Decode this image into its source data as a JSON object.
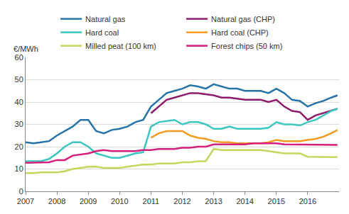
{
  "chart_data": {
    "type": "line",
    "ylabel": "€/MWh",
    "x": [
      2007.0,
      2007.25,
      2007.5,
      2007.75,
      2008.0,
      2008.25,
      2008.5,
      2008.75,
      2009.0,
      2009.25,
      2009.5,
      2009.75,
      2010.0,
      2010.25,
      2010.5,
      2010.75,
      2011.0,
      2011.25,
      2011.5,
      2011.75,
      2012.0,
      2012.25,
      2012.5,
      2012.75,
      2013.0,
      2013.25,
      2013.5,
      2013.75,
      2014.0,
      2014.25,
      2014.5,
      2014.75,
      2015.0,
      2015.25,
      2015.5,
      2015.75,
      2016.0,
      2016.25,
      2016.5,
      2016.75,
      2016.95
    ],
    "series": [
      {
        "name": "Natural gas",
        "color": "#2773a8",
        "values": [
          22,
          21.5,
          22,
          22.5,
          25,
          27,
          29,
          32,
          32,
          27,
          26,
          27.5,
          28,
          29,
          31,
          32,
          38,
          41,
          44,
          45,
          46,
          47.5,
          47,
          46,
          48,
          47,
          46,
          46,
          45,
          45,
          45,
          44,
          46,
          44,
          41,
          40.5,
          38,
          39.5,
          40.5,
          42,
          43
        ]
      },
      {
        "name": "Natural gas (CHP)",
        "color": "#8e1c6a",
        "values": [
          null,
          null,
          null,
          null,
          null,
          null,
          null,
          null,
          null,
          null,
          null,
          null,
          null,
          null,
          null,
          null,
          35,
          38,
          41,
          42,
          43,
          44,
          44,
          43.5,
          43,
          42,
          42,
          41.5,
          41,
          41,
          41,
          40,
          41,
          38,
          36,
          35.5,
          32,
          34,
          35,
          36,
          37
        ]
      },
      {
        "name": "Hard coal",
        "color": "#3cc6c0",
        "values": [
          13.5,
          13.5,
          13.5,
          14.5,
          17,
          20,
          22,
          22,
          20,
          17,
          16,
          15,
          15,
          16,
          17,
          17.5,
          29,
          31,
          31.5,
          32,
          30,
          31,
          31,
          30,
          28,
          28,
          29,
          28,
          28,
          28,
          28,
          28.5,
          31,
          30,
          30,
          29.5,
          31,
          32,
          34,
          36,
          37
        ]
      },
      {
        "name": "Hard coal (CHP)",
        "color": "#f39b1e",
        "values": [
          null,
          null,
          null,
          null,
          null,
          null,
          null,
          null,
          null,
          null,
          null,
          null,
          null,
          null,
          null,
          null,
          24,
          26,
          27,
          27,
          27,
          25,
          24,
          23.5,
          22.5,
          22,
          22,
          21.5,
          21.5,
          21.5,
          21.5,
          22,
          23,
          22.5,
          22.5,
          22.5,
          23,
          23.5,
          24.5,
          26,
          27.5
        ]
      },
      {
        "name": "Milled peat (100 km)",
        "color": "#c1d95a",
        "values": [
          8.2,
          8.2,
          8.5,
          8.5,
          8.5,
          9,
          10,
          10.5,
          11,
          11,
          10.5,
          10.5,
          10.5,
          11,
          11.5,
          12,
          12,
          12.5,
          12.5,
          12.5,
          13,
          13,
          13.5,
          13.5,
          19,
          18.5,
          18.5,
          18.5,
          18.5,
          18.5,
          18.5,
          18,
          17.5,
          17,
          17,
          17,
          15.5,
          15.5,
          15.5,
          15.3,
          15.3
        ]
      },
      {
        "name": "Forest chips (50 km)",
        "color": "#d61f7a",
        "values": [
          12.8,
          12.8,
          12.8,
          13,
          14,
          14,
          16,
          16.5,
          17,
          18,
          18.5,
          18,
          18,
          18,
          18,
          18.5,
          18.5,
          19,
          19,
          19,
          19.5,
          19.5,
          20,
          20,
          21,
          21,
          21,
          21,
          21,
          21.5,
          21.5,
          21.5,
          21.5,
          21,
          21,
          21,
          21,
          21,
          20.8,
          20.8,
          20.8
        ]
      }
    ],
    "xlim": [
      2007,
      2017
    ],
    "xticks": [
      2007,
      2008,
      2009,
      2010,
      2011,
      2012,
      2013,
      2014,
      2015,
      2016
    ],
    "ylim": [
      0,
      60
    ],
    "yticks": [
      0,
      10,
      20,
      30,
      40,
      50,
      60
    ],
    "grid": true,
    "legend": "top"
  }
}
